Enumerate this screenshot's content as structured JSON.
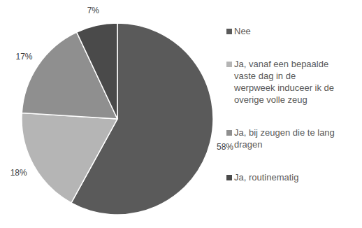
{
  "chart_data": {
    "type": "pie",
    "categories": [
      "Nee",
      "Ja, vanaf een bepaalde vaste dag in de werpweek induceer ik de overige volle zeug",
      "Ja, bij zeugen die te lang dragen",
      "Ja, routinematig"
    ],
    "values": [
      58,
      18,
      17,
      7
    ],
    "value_labels": [
      "58%",
      "18%",
      "17%",
      "7%"
    ],
    "colors": [
      "#5a5a5a",
      "#b5b5b5",
      "#8f8f8f",
      "#4a4a4a"
    ],
    "data_labels": true,
    "legend": "right"
  }
}
